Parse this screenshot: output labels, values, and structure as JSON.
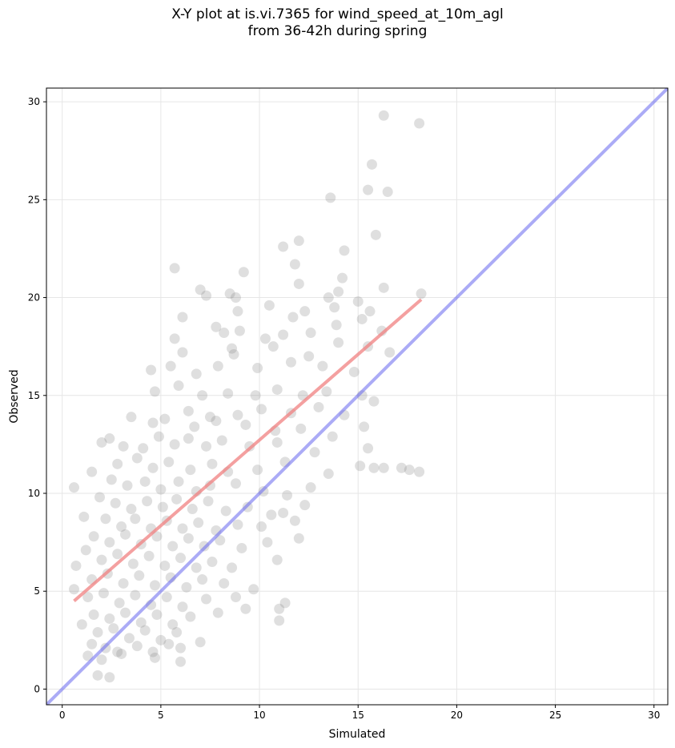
{
  "chart_data": {
    "type": "scatter",
    "title_line1": "X-Y plot at is.vi.7365 for wind_speed_at_10m_agl",
    "title_line2": "from 36-42h during spring",
    "xlabel": "Simulated",
    "ylabel": "Observed",
    "xlim": [
      -0.8,
      30.7
    ],
    "ylim": [
      -0.8,
      30.7
    ],
    "xticks": [
      0,
      5,
      10,
      15,
      20,
      25,
      30
    ],
    "yticks": [
      0,
      5,
      10,
      15,
      20,
      25,
      30
    ],
    "grid": true,
    "colors": {
      "points": "#808080",
      "regression_line": "#f08080",
      "identity_line": "#6666ee",
      "grid": "#e6e6e6",
      "axes": "#000000"
    },
    "series": [
      {
        "values": [
          [
            16.3,
            29.3
          ],
          [
            18.1,
            28.9
          ],
          [
            15.7,
            26.8
          ],
          [
            13.6,
            25.1
          ],
          [
            15.5,
            25.5
          ],
          [
            16.5,
            25.4
          ],
          [
            15.9,
            23.2
          ],
          [
            11.2,
            22.6
          ],
          [
            12.0,
            22.9
          ],
          [
            14.3,
            22.4
          ],
          [
            5.7,
            21.5
          ],
          [
            9.2,
            21.3
          ],
          [
            11.8,
            21.7
          ],
          [
            14.2,
            21.0
          ],
          [
            7.0,
            20.4
          ],
          [
            7.3,
            20.1
          ],
          [
            8.5,
            20.2
          ],
          [
            8.8,
            20.0
          ],
          [
            12.0,
            20.7
          ],
          [
            13.5,
            20.0
          ],
          [
            14.0,
            20.3
          ],
          [
            16.3,
            20.5
          ],
          [
            18.2,
            20.2
          ],
          [
            8.9,
            19.3
          ],
          [
            10.5,
            19.6
          ],
          [
            11.7,
            19.0
          ],
          [
            12.3,
            19.3
          ],
          [
            13.8,
            19.5
          ],
          [
            15.0,
            19.8
          ],
          [
            15.6,
            19.3
          ],
          [
            6.1,
            19.0
          ],
          [
            7.8,
            18.5
          ],
          [
            8.2,
            18.2
          ],
          [
            9.0,
            18.3
          ],
          [
            10.3,
            17.9
          ],
          [
            11.2,
            18.1
          ],
          [
            12.6,
            18.2
          ],
          [
            13.9,
            18.6
          ],
          [
            15.2,
            18.9
          ],
          [
            16.2,
            18.3
          ],
          [
            5.7,
            17.9
          ],
          [
            6.1,
            17.2
          ],
          [
            8.6,
            17.4
          ],
          [
            10.7,
            17.5
          ],
          [
            12.5,
            17.0
          ],
          [
            14.0,
            17.7
          ],
          [
            15.5,
            17.5
          ],
          [
            16.6,
            17.2
          ],
          [
            4.5,
            16.3
          ],
          [
            5.5,
            16.5
          ],
          [
            6.8,
            16.1
          ],
          [
            7.9,
            16.5
          ],
          [
            8.7,
            17.1
          ],
          [
            9.9,
            16.4
          ],
          [
            11.6,
            16.7
          ],
          [
            13.2,
            16.5
          ],
          [
            14.8,
            16.2
          ],
          [
            4.7,
            15.2
          ],
          [
            5.9,
            15.5
          ],
          [
            7.1,
            15.0
          ],
          [
            8.4,
            15.1
          ],
          [
            9.8,
            15.0
          ],
          [
            10.9,
            15.3
          ],
          [
            12.2,
            15.0
          ],
          [
            13.4,
            15.2
          ],
          [
            15.2,
            15.0
          ],
          [
            15.8,
            14.7
          ],
          [
            6.4,
            14.2
          ],
          [
            7.5,
            13.9
          ],
          [
            8.9,
            14.0
          ],
          [
            10.1,
            14.3
          ],
          [
            11.6,
            14.1
          ],
          [
            13.0,
            14.4
          ],
          [
            14.3,
            14.0
          ],
          [
            15.3,
            13.4
          ],
          [
            3.5,
            13.9
          ],
          [
            4.6,
            13.6
          ],
          [
            5.2,
            13.8
          ],
          [
            6.7,
            13.4
          ],
          [
            7.8,
            13.7
          ],
          [
            9.3,
            13.5
          ],
          [
            10.8,
            13.2
          ],
          [
            12.1,
            13.3
          ],
          [
            13.7,
            12.9
          ],
          [
            2.4,
            12.8
          ],
          [
            3.1,
            12.4
          ],
          [
            4.1,
            12.3
          ],
          [
            4.9,
            12.9
          ],
          [
            5.7,
            12.5
          ],
          [
            6.4,
            12.8
          ],
          [
            7.3,
            12.4
          ],
          [
            8.1,
            12.7
          ],
          [
            9.5,
            12.4
          ],
          [
            10.9,
            12.6
          ],
          [
            12.8,
            12.1
          ],
          [
            15.5,
            12.3
          ],
          [
            2.0,
            12.6
          ],
          [
            2.8,
            11.5
          ],
          [
            3.8,
            11.8
          ],
          [
            4.6,
            11.3
          ],
          [
            5.4,
            11.6
          ],
          [
            6.5,
            11.2
          ],
          [
            7.6,
            11.5
          ],
          [
            8.4,
            11.1
          ],
          [
            9.9,
            11.2
          ],
          [
            11.3,
            11.6
          ],
          [
            13.5,
            11.0
          ],
          [
            15.1,
            11.4
          ],
          [
            16.3,
            11.3
          ],
          [
            15.8,
            11.3
          ],
          [
            17.2,
            11.3
          ],
          [
            17.6,
            11.2
          ],
          [
            18.1,
            11.1
          ],
          [
            0.6,
            10.3
          ],
          [
            1.5,
            11.1
          ],
          [
            2.5,
            10.7
          ],
          [
            3.3,
            10.4
          ],
          [
            4.2,
            10.6
          ],
          [
            5.0,
            10.2
          ],
          [
            5.9,
            10.6
          ],
          [
            6.8,
            10.1
          ],
          [
            7.5,
            10.4
          ],
          [
            8.8,
            10.5
          ],
          [
            10.2,
            10.1
          ],
          [
            11.4,
            9.9
          ],
          [
            12.6,
            10.3
          ],
          [
            1.1,
            8.8
          ],
          [
            1.9,
            9.8
          ],
          [
            2.7,
            9.5
          ],
          [
            3.5,
            9.2
          ],
          [
            4.3,
            9.6
          ],
          [
            5.1,
            9.3
          ],
          [
            5.8,
            9.7
          ],
          [
            6.6,
            9.2
          ],
          [
            7.4,
            9.6
          ],
          [
            8.3,
            9.1
          ],
          [
            9.4,
            9.3
          ],
          [
            10.6,
            8.9
          ],
          [
            12.3,
            9.4
          ],
          [
            11.2,
            9.0
          ],
          [
            2.2,
            8.7
          ],
          [
            3.0,
            8.3
          ],
          [
            3.7,
            8.7
          ],
          [
            4.5,
            8.2
          ],
          [
            5.3,
            8.6
          ],
          [
            6.1,
            8.2
          ],
          [
            6.9,
            8.5
          ],
          [
            7.8,
            8.1
          ],
          [
            8.9,
            8.4
          ],
          [
            10.1,
            8.3
          ],
          [
            11.8,
            8.6
          ],
          [
            1.6,
            7.8
          ],
          [
            2.4,
            7.5
          ],
          [
            3.2,
            7.9
          ],
          [
            4.0,
            7.4
          ],
          [
            4.8,
            7.8
          ],
          [
            5.6,
            7.3
          ],
          [
            6.4,
            7.7
          ],
          [
            7.2,
            7.3
          ],
          [
            8.0,
            7.6
          ],
          [
            9.1,
            7.2
          ],
          [
            10.4,
            7.5
          ],
          [
            12.0,
            7.7
          ],
          [
            1.2,
            7.1
          ],
          [
            2.0,
            6.6
          ],
          [
            2.8,
            6.9
          ],
          [
            3.6,
            6.4
          ],
          [
            4.4,
            6.8
          ],
          [
            5.2,
            6.3
          ],
          [
            6.0,
            6.7
          ],
          [
            6.8,
            6.2
          ],
          [
            7.6,
            6.5
          ],
          [
            8.6,
            6.2
          ],
          [
            10.9,
            6.6
          ],
          [
            0.7,
            6.3
          ],
          [
            1.5,
            5.6
          ],
          [
            2.3,
            5.9
          ],
          [
            3.1,
            5.4
          ],
          [
            3.9,
            5.8
          ],
          [
            4.7,
            5.3
          ],
          [
            5.5,
            5.7
          ],
          [
            6.3,
            5.2
          ],
          [
            7.1,
            5.6
          ],
          [
            8.2,
            5.4
          ],
          [
            9.7,
            5.1
          ],
          [
            0.6,
            5.1
          ],
          [
            1.3,
            4.7
          ],
          [
            2.1,
            4.9
          ],
          [
            2.9,
            4.4
          ],
          [
            3.7,
            4.8
          ],
          [
            4.5,
            4.3
          ],
          [
            5.3,
            4.7
          ],
          [
            6.1,
            4.2
          ],
          [
            7.3,
            4.6
          ],
          [
            8.8,
            4.7
          ],
          [
            11.3,
            4.4
          ],
          [
            1.6,
            3.8
          ],
          [
            2.4,
            3.6
          ],
          [
            3.2,
            3.9
          ],
          [
            4.0,
            3.4
          ],
          [
            4.8,
            3.8
          ],
          [
            5.6,
            3.3
          ],
          [
            6.5,
            3.7
          ],
          [
            7.9,
            3.9
          ],
          [
            9.3,
            4.1
          ],
          [
            11.0,
            4.1
          ],
          [
            1.0,
            3.3
          ],
          [
            1.8,
            2.9
          ],
          [
            2.6,
            3.1
          ],
          [
            3.4,
            2.6
          ],
          [
            4.2,
            3.0
          ],
          [
            5.0,
            2.5
          ],
          [
            5.8,
            2.9
          ],
          [
            7.0,
            2.4
          ],
          [
            1.5,
            2.3
          ],
          [
            2.2,
            2.1
          ],
          [
            3.0,
            1.8
          ],
          [
            3.8,
            2.2
          ],
          [
            4.6,
            1.9
          ],
          [
            5.4,
            2.3
          ],
          [
            6.0,
            2.1
          ],
          [
            11.0,
            3.5
          ],
          [
            1.3,
            1.7
          ],
          [
            2.0,
            1.5
          ],
          [
            2.8,
            1.9
          ],
          [
            4.7,
            1.6
          ],
          [
            6.0,
            1.4
          ],
          [
            1.8,
            0.7
          ],
          [
            2.4,
            0.6
          ]
        ]
      }
    ],
    "regression_line": [
      [
        0.6,
        4.5
      ],
      [
        18.2,
        19.9
      ]
    ],
    "identity_line": [
      [
        -0.8,
        -0.8
      ],
      [
        30.7,
        30.7
      ]
    ]
  }
}
